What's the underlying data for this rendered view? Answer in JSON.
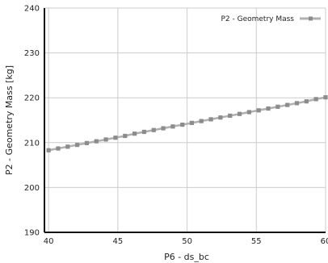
{
  "chart_data": {
    "type": "line",
    "xlabel": "P6 - ds_bc",
    "ylabel": "P2 - Geometry Mass  [kg]",
    "xlim": [
      39.7,
      60
    ],
    "ylim": [
      190,
      240
    ],
    "xticks": [
      40,
      45,
      50,
      55,
      60
    ],
    "yticks": [
      190,
      200,
      210,
      220,
      230,
      240
    ],
    "grid": true,
    "legend_position": "top-right",
    "series": [
      {
        "name": "P2 - Geometry Mass",
        "color": "#8c8c8c",
        "marker": "square",
        "x": [
          40,
          40.69,
          41.38,
          42.07,
          42.76,
          43.45,
          44.14,
          44.83,
          45.52,
          46.21,
          46.9,
          47.59,
          48.28,
          48.97,
          49.66,
          50.34,
          51.03,
          51.72,
          52.41,
          53.1,
          53.79,
          54.48,
          55.17,
          55.86,
          56.55,
          57.24,
          57.93,
          58.62,
          59.31,
          60
        ],
        "y": [
          208.3,
          208.7,
          209.1,
          209.5,
          209.9,
          210.3,
          210.7,
          211.1,
          211.5,
          212.0,
          212.4,
          212.8,
          213.2,
          213.6,
          214.0,
          214.4,
          214.8,
          215.2,
          215.6,
          216.0,
          216.4,
          216.8,
          217.2,
          217.6,
          218.0,
          218.4,
          218.8,
          219.2,
          219.7,
          220.1
        ]
      }
    ]
  }
}
